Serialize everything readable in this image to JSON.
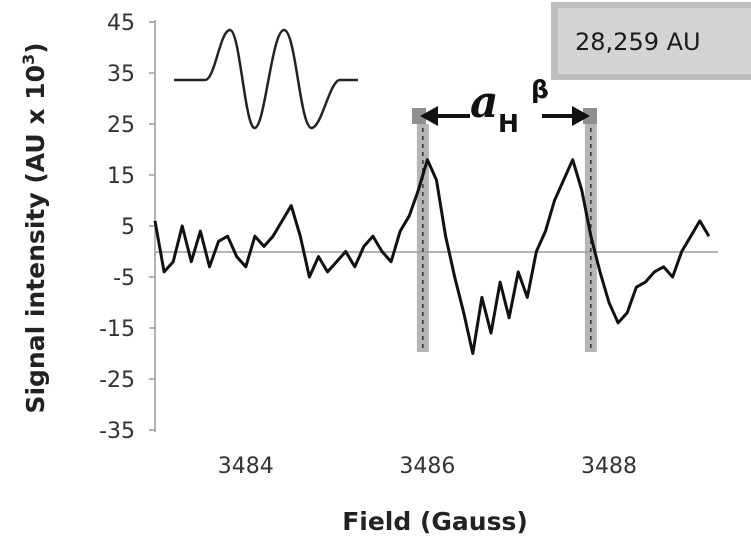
{
  "chart_data": {
    "type": "line",
    "xlabel": "Field (Gauss)",
    "ylabel": "Signal intensity (AU x 10",
    "ylabel_sup": "3",
    "ylabel_close": ")",
    "xlim": [
      3483.0,
      3489.2
    ],
    "ylim": [
      -35,
      45
    ],
    "yticks": [
      45,
      35,
      25,
      15,
      5,
      -5,
      -15,
      -25,
      -35
    ],
    "xticks": [
      3484,
      3486,
      3488
    ],
    "ytick_labels": [
      "45",
      "35",
      "25",
      "15",
      "5",
      "-5",
      "-15",
      "-25",
      "-35"
    ],
    "xtick_labels": [
      "3484",
      "3486",
      "3488"
    ],
    "grid": false,
    "baseline": 0,
    "series": [
      {
        "x": [
          3483.0,
          3483.1,
          3483.2,
          3483.3,
          3483.4,
          3483.5,
          3483.6,
          3483.7,
          3483.8,
          3483.9,
          3484.0,
          3484.1,
          3484.2,
          3484.3,
          3484.4,
          3484.5,
          3484.6,
          3484.7,
          3484.8,
          3484.9,
          3485.0,
          3485.1,
          3485.2,
          3485.3,
          3485.4,
          3485.5,
          3485.6,
          3485.7,
          3485.8,
          3485.9,
          3486.0,
          3486.1,
          3486.2,
          3486.3,
          3486.4,
          3486.5,
          3486.6,
          3486.7,
          3486.8,
          3486.9,
          3487.0,
          3487.1,
          3487.2,
          3487.3,
          3487.4,
          3487.5,
          3487.6,
          3487.7,
          3487.8,
          3487.9,
          3488.0,
          3488.1,
          3488.2,
          3488.3,
          3488.4,
          3488.5,
          3488.6,
          3488.7,
          3488.8,
          3488.9,
          3489.0,
          3489.1
        ],
        "y": [
          6,
          -4,
          -2,
          5,
          -2,
          4,
          -3,
          2,
          3,
          -1,
          -3,
          3,
          1,
          3,
          6,
          9,
          3,
          -5,
          -1,
          -4,
          -2,
          0,
          -3,
          1,
          3,
          0,
          -2,
          4,
          7,
          12,
          18,
          14,
          3,
          -5,
          -12,
          -20,
          -9,
          -16,
          -6,
          -13,
          -4,
          -9,
          0,
          4,
          10,
          14,
          18,
          12,
          3,
          -4,
          -10,
          -14,
          -12,
          -7,
          -6,
          -4,
          -3,
          -5,
          0,
          3,
          6,
          3
        ]
      }
    ],
    "annotations": {
      "badge": "28,259 AU",
      "coupling_main": "a",
      "coupling_sub": "H",
      "coupling_sup": "β",
      "peak_markers_x": [
        3485.95,
        3487.8
      ]
    }
  }
}
